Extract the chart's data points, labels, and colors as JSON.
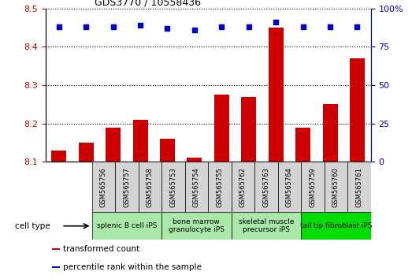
{
  "title": "GDS3770 / 10558436",
  "samples": [
    "GSM565756",
    "GSM565757",
    "GSM565758",
    "GSM565753",
    "GSM565754",
    "GSM565755",
    "GSM565762",
    "GSM565763",
    "GSM565764",
    "GSM565759",
    "GSM565760",
    "GSM565761"
  ],
  "transformed_counts": [
    8.13,
    8.15,
    8.19,
    8.21,
    8.16,
    8.11,
    8.275,
    8.27,
    8.45,
    8.19,
    8.25,
    8.37
  ],
  "percentile_ranks": [
    88,
    88,
    88,
    89,
    87,
    86,
    88,
    88,
    91,
    88,
    88,
    88
  ],
  "cell_type_groups": [
    {
      "label": "splenic B cell iPS",
      "start": 0,
      "end": 3,
      "color": "#c8f0b0"
    },
    {
      "label": "bone marrow\ngranulocyte iPS",
      "start": 3,
      "end": 6,
      "color": "#c8f0b0"
    },
    {
      "label": "skeletal muscle\nprecursor iPS",
      "start": 6,
      "end": 9,
      "color": "#c8f0b0"
    },
    {
      "label": "tail tip fibroblast iPS",
      "start": 9,
      "end": 12,
      "color": "#00e000"
    }
  ],
  "ylim_left": [
    8.1,
    8.5
  ],
  "ylim_right": [
    0,
    100
  ],
  "yticks_left": [
    8.1,
    8.2,
    8.3,
    8.4,
    8.5
  ],
  "yticks_right": [
    0,
    25,
    50,
    75,
    100
  ],
  "bar_color": "#cc0000",
  "dot_color": "#0000cc",
  "background_color": "#ffffff",
  "cell_type_label": "cell type",
  "legend_items": [
    {
      "label": "transformed count",
      "color": "#cc0000"
    },
    {
      "label": "percentile rank within the sample",
      "color": "#0000cc"
    }
  ],
  "grid_color": "#000000",
  "tick_color_left": "#cc0000",
  "tick_color_right": "#0000cc",
  "sample_box_color": "#d4d4d4",
  "light_green": "#aae8aa",
  "bright_green": "#00dd00"
}
